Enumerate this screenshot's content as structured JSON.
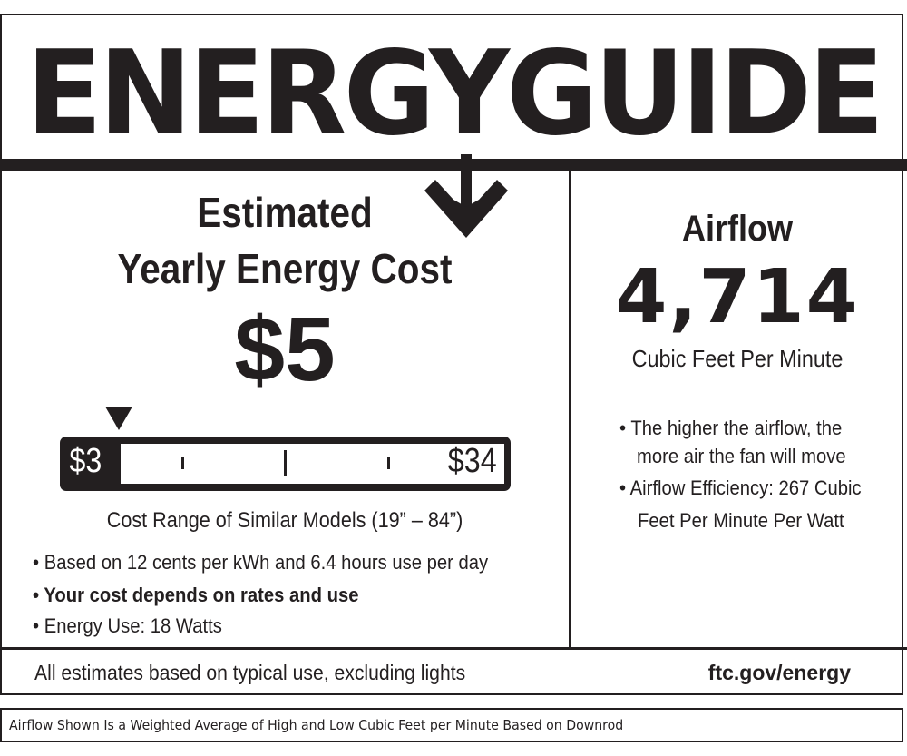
{
  "logo": {
    "text": "ENERGYGUIDE"
  },
  "cost": {
    "heading_line1": "Estimated",
    "heading_line2": "Yearly Energy Cost",
    "value": "$5",
    "range_low": "$3",
    "range_high": "$34",
    "range_label": "Cost Range of Similar Models (19” – 84”)",
    "bullets": [
      "• Based on 12 cents per kWh and 6.4 hours use per day",
      "• Your cost depends on rates and use",
      "• Energy Use: 18 Watts"
    ]
  },
  "airflow": {
    "heading": "Airflow",
    "value": "4,714",
    "unit": "Cubic Feet Per Minute",
    "bullet1_line1": "• The higher the airflow, the",
    "bullet1_line2": "more air the fan will move",
    "bullet2_line1": "• Airflow Efficiency: 267 Cubic",
    "bullet2_line2": "Feet Per Minute Per Watt"
  },
  "footer": {
    "note": "All estimates based on typical use, excluding lights",
    "link": "ftc.gov/energy"
  },
  "disclaimer": "Airflow Shown Is a Weighted Average of High and Low Cubic Feet per Minute Based on Downrod"
}
